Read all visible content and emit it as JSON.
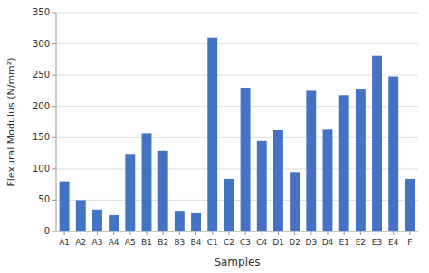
{
  "chart_data": {
    "type": "bar",
    "categories": [
      "A1",
      "A2",
      "A3",
      "A4",
      "A5",
      "B1",
      "B2",
      "B3",
      "B4",
      "C1",
      "C2",
      "C3",
      "C4",
      "D1",
      "D2",
      "D3",
      "D4",
      "E1",
      "E2",
      "E3",
      "E4",
      "F"
    ],
    "values": [
      80,
      50,
      35,
      26,
      124,
      157,
      129,
      33,
      29,
      310,
      84,
      230,
      145,
      162,
      95,
      225,
      163,
      218,
      227,
      281,
      248,
      84
    ],
    "color": "#4472C4",
    "xlabel": "Samples",
    "ylabel": "Flexural Modulus (N/mm²)",
    "ylim": [
      0,
      350
    ],
    "yticks": [
      0,
      50,
      100,
      150,
      200,
      250,
      300,
      350
    ],
    "grid": true
  }
}
